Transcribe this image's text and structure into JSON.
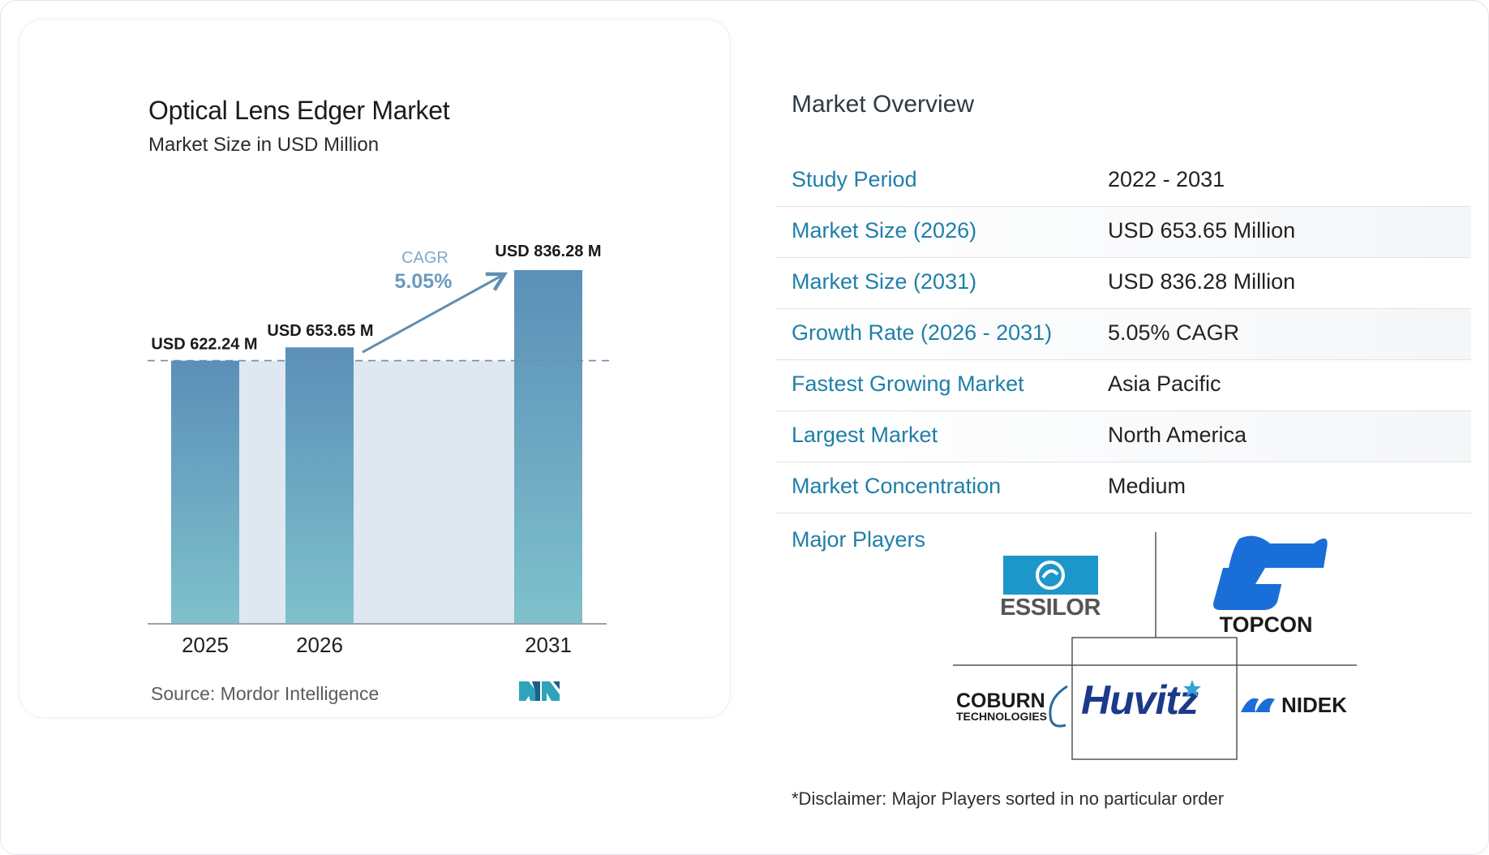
{
  "chart_data": {
    "type": "bar",
    "title": "Optical Lens Edger Market",
    "subtitle": "Market Size in USD Million",
    "categories": [
      "2025",
      "2026",
      "2031"
    ],
    "values": [
      622.24,
      653.65,
      836.28
    ],
    "data_labels": [
      "USD 622.24 M",
      "USD 653.65 M",
      "USD 836.28 M"
    ],
    "cagr_label": "CAGR",
    "cagr_value": "5.05%",
    "grid": false,
    "colors": {
      "bar_top": "#5b8fb8",
      "bar_bottom": "#7fc1cc",
      "shade": "#dfe8f0",
      "arrow": "#5f8fb3",
      "cagr_label": "#7fa9c6",
      "cagr_value": "#6a9bc0"
    }
  },
  "source": "Source:  Mordor Intelligence",
  "overview": {
    "title": "Market Overview",
    "rows": [
      {
        "key": "Study Period",
        "value": "2022 - 2031"
      },
      {
        "key": "Market Size (2026)",
        "value": "USD 653.65 Million"
      },
      {
        "key": "Market Size (2031)",
        "value": "USD 836.28 Million"
      },
      {
        "key": "Growth Rate (2026 - 2031)",
        "value": "5.05% CAGR"
      },
      {
        "key": "Fastest Growing Market",
        "value": "Asia Pacific"
      },
      {
        "key": "Largest Market",
        "value": "North America"
      },
      {
        "key": "Market Concentration",
        "value": "Medium"
      }
    ],
    "major_players_label": "Major Players",
    "players": {
      "essilor": "ESSILOR",
      "topcon": "TOPCON",
      "coburn_line1": "COBURN",
      "coburn_line2": "TECHNOLOGIES",
      "huvitz": "Huvitz",
      "nidek": "NIDEK"
    },
    "disclaimer": "*Disclaimer: Major Players sorted in no particular order"
  },
  "accent_color": "#1f7fa8"
}
